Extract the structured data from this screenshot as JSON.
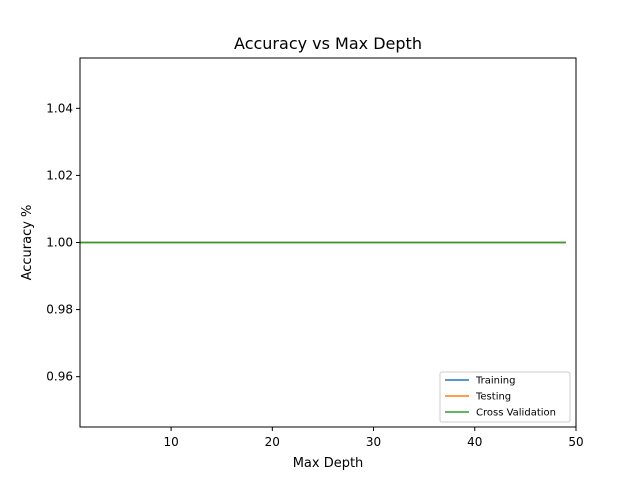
{
  "chart_data": {
    "type": "line",
    "title": "Accuracy vs Max Depth",
    "xlabel": "Max Depth",
    "ylabel": "Accuracy %",
    "xlim": [
      1,
      50
    ],
    "ylim": [
      0.945,
      1.055
    ],
    "xticks": [
      10,
      20,
      30,
      40,
      50
    ],
    "yticks": [
      0.96,
      0.98,
      1.0,
      1.02,
      1.04
    ],
    "ytick_labels": [
      "0.96",
      "0.98",
      "1.00",
      "1.02",
      "1.04"
    ],
    "x": [
      1,
      49
    ],
    "series": [
      {
        "name": "Training",
        "color": "#1f77b4",
        "values": [
          1.0,
          1.0
        ]
      },
      {
        "name": "Testing",
        "color": "#ff7f0e",
        "values": [
          1.0,
          1.0
        ]
      },
      {
        "name": "Cross Validation",
        "color": "#2ca02c",
        "values": [
          1.0,
          1.0
        ]
      }
    ],
    "legend_position": "lower-right",
    "grid": false
  }
}
